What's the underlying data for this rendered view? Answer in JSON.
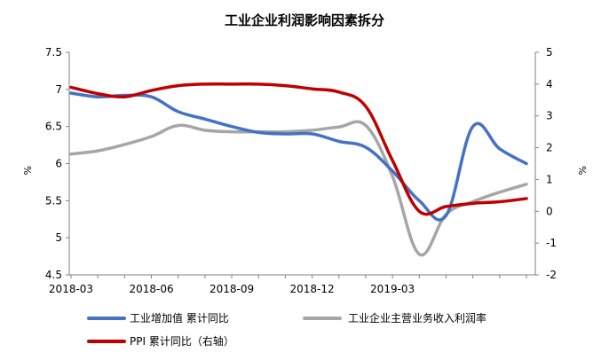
{
  "chart_data": {
    "type": "line",
    "title": "工业企业利润影响因素拆分",
    "x_tick_labels": [
      "2018-03",
      "2018-06",
      "2018-09",
      "2018-12",
      "2019-03"
    ],
    "y_left": {
      "unit_label": "%",
      "range": [
        4.5,
        7.5
      ],
      "tick_labels": [
        "7.5",
        "7",
        "6.5",
        "6",
        "5.5",
        "5",
        "4.5"
      ],
      "tick_values": [
        7.5,
        7.0,
        6.5,
        6.0,
        5.5,
        5.0,
        4.5
      ]
    },
    "y_right": {
      "unit_label": "%",
      "range": [
        -2,
        5
      ],
      "tick_labels": [
        "5",
        "4",
        "3",
        "2",
        "1",
        "0",
        "-1",
        "-2"
      ],
      "tick_values": [
        5,
        4,
        3,
        2,
        1,
        0,
        -1,
        -2
      ]
    },
    "x_range": [
      0,
      17
    ],
    "x_tick_positions": [
      0,
      3,
      6,
      9,
      12
    ],
    "grid": false,
    "legend_position": "bottom",
    "series": [
      {
        "name": "工业增加值 累计同比",
        "axis": "left",
        "color": "#4472C4",
        "x": [
          0,
          1,
          2,
          3,
          4,
          5,
          6,
          7,
          8,
          9,
          10,
          11,
          12,
          13,
          14,
          15,
          16,
          17
        ],
        "values": [
          6.95,
          6.9,
          6.92,
          6.9,
          6.7,
          6.6,
          6.5,
          6.42,
          6.4,
          6.4,
          6.3,
          6.22,
          5.9,
          5.5,
          5.3,
          6.5,
          6.2,
          6.0
        ]
      },
      {
        "name": "工业企业主营业务收入利润率",
        "axis": "right",
        "color": "#A6A6A6",
        "x": [
          0,
          1,
          2,
          3,
          4,
          5,
          6,
          7,
          8,
          9,
          10,
          11,
          12,
          13,
          14,
          15,
          16,
          17
        ],
        "values": [
          1.8,
          1.9,
          2.1,
          2.35,
          2.7,
          2.55,
          2.5,
          2.5,
          2.5,
          2.55,
          2.65,
          2.7,
          1.1,
          -1.35,
          -0.1,
          0.3,
          0.6,
          0.85
        ]
      },
      {
        "name": "PPI 累计同比（右轴）",
        "axis": "right",
        "color": "#C00000",
        "x": [
          0,
          1,
          2,
          3,
          4,
          5,
          6,
          7,
          8,
          9,
          10,
          11,
          12,
          13,
          14,
          15,
          16,
          17
        ],
        "values": [
          3.9,
          3.7,
          3.6,
          3.8,
          3.95,
          4.0,
          4.0,
          4.0,
          3.95,
          3.85,
          3.75,
          3.3,
          1.6,
          0.0,
          0.15,
          0.25,
          0.3,
          0.4
        ]
      }
    ]
  }
}
